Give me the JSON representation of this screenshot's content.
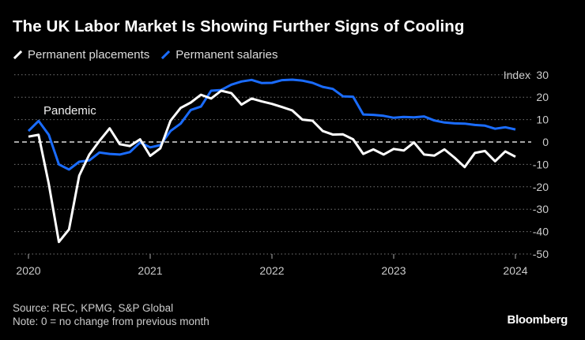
{
  "title": "The UK Labor Market Is Showing Further Signs of Cooling",
  "source": "Source: REC, KPMG, S&P Global",
  "note": "Note: 0 = no change from previous month",
  "brand": "Bloomberg",
  "chart_data": {
    "type": "line",
    "title": "The UK Labor Market Is Showing Further Signs of Cooling",
    "ylabel": "Index",
    "ylim": [
      -50,
      30
    ],
    "yticks": [
      30,
      20,
      10,
      0,
      -10,
      -20,
      -30,
      -40,
      -50
    ],
    "xticks": [
      "2020",
      "2021",
      "2022",
      "2023",
      "2024"
    ],
    "x_range": [
      "2020-01",
      "2024-01"
    ],
    "frequency": "monthly",
    "grid": true,
    "legend_position": "top-left",
    "annotations": [
      {
        "text": "Pandemic",
        "x": "2020-04"
      }
    ],
    "reference_line": 0,
    "series": [
      {
        "name": "Permanent placements",
        "color": "#ffffff",
        "values": [
          2.4,
          3.2,
          -18.7,
          -44.6,
          -39,
          -15,
          -5.6,
          0.5,
          6.1,
          -1,
          -1.8,
          1.2,
          -6.2,
          -2.8,
          9.5,
          15.2,
          17.6,
          21.1,
          19.4,
          22.9,
          21.8,
          16.7,
          19.4,
          18.1,
          17,
          15.6,
          14.1,
          10,
          9.5,
          4.9,
          3.3,
          3.4,
          1.2,
          -5.3,
          -3.3,
          -5.6,
          -3.1,
          -3.8,
          -0.2,
          -5.6,
          -6.1,
          -3.3,
          -7,
          -11.2,
          -4.9,
          -4,
          -8.6,
          -4.2,
          -6.6
        ]
      },
      {
        "name": "Permanent salaries",
        "color": "#1a6cff",
        "values": [
          4.9,
          9.4,
          3.2,
          -10,
          -12.3,
          -8.8,
          -8.2,
          -4.7,
          -5.3,
          -5.6,
          -4.5,
          -0.2,
          -2.4,
          -1.4,
          4.9,
          8.2,
          14.3,
          15.8,
          22.9,
          23.2,
          25.6,
          27,
          27.7,
          26.3,
          26.4,
          27.6,
          27.8,
          27.4,
          26.4,
          24.6,
          23.7,
          20.4,
          20.2,
          12.3,
          12.1,
          11.7,
          10.8,
          11.2,
          11,
          11.4,
          9.6,
          8.7,
          8.3,
          8.2,
          7.6,
          7.3,
          5.9,
          6.6,
          5.6
        ]
      }
    ]
  }
}
